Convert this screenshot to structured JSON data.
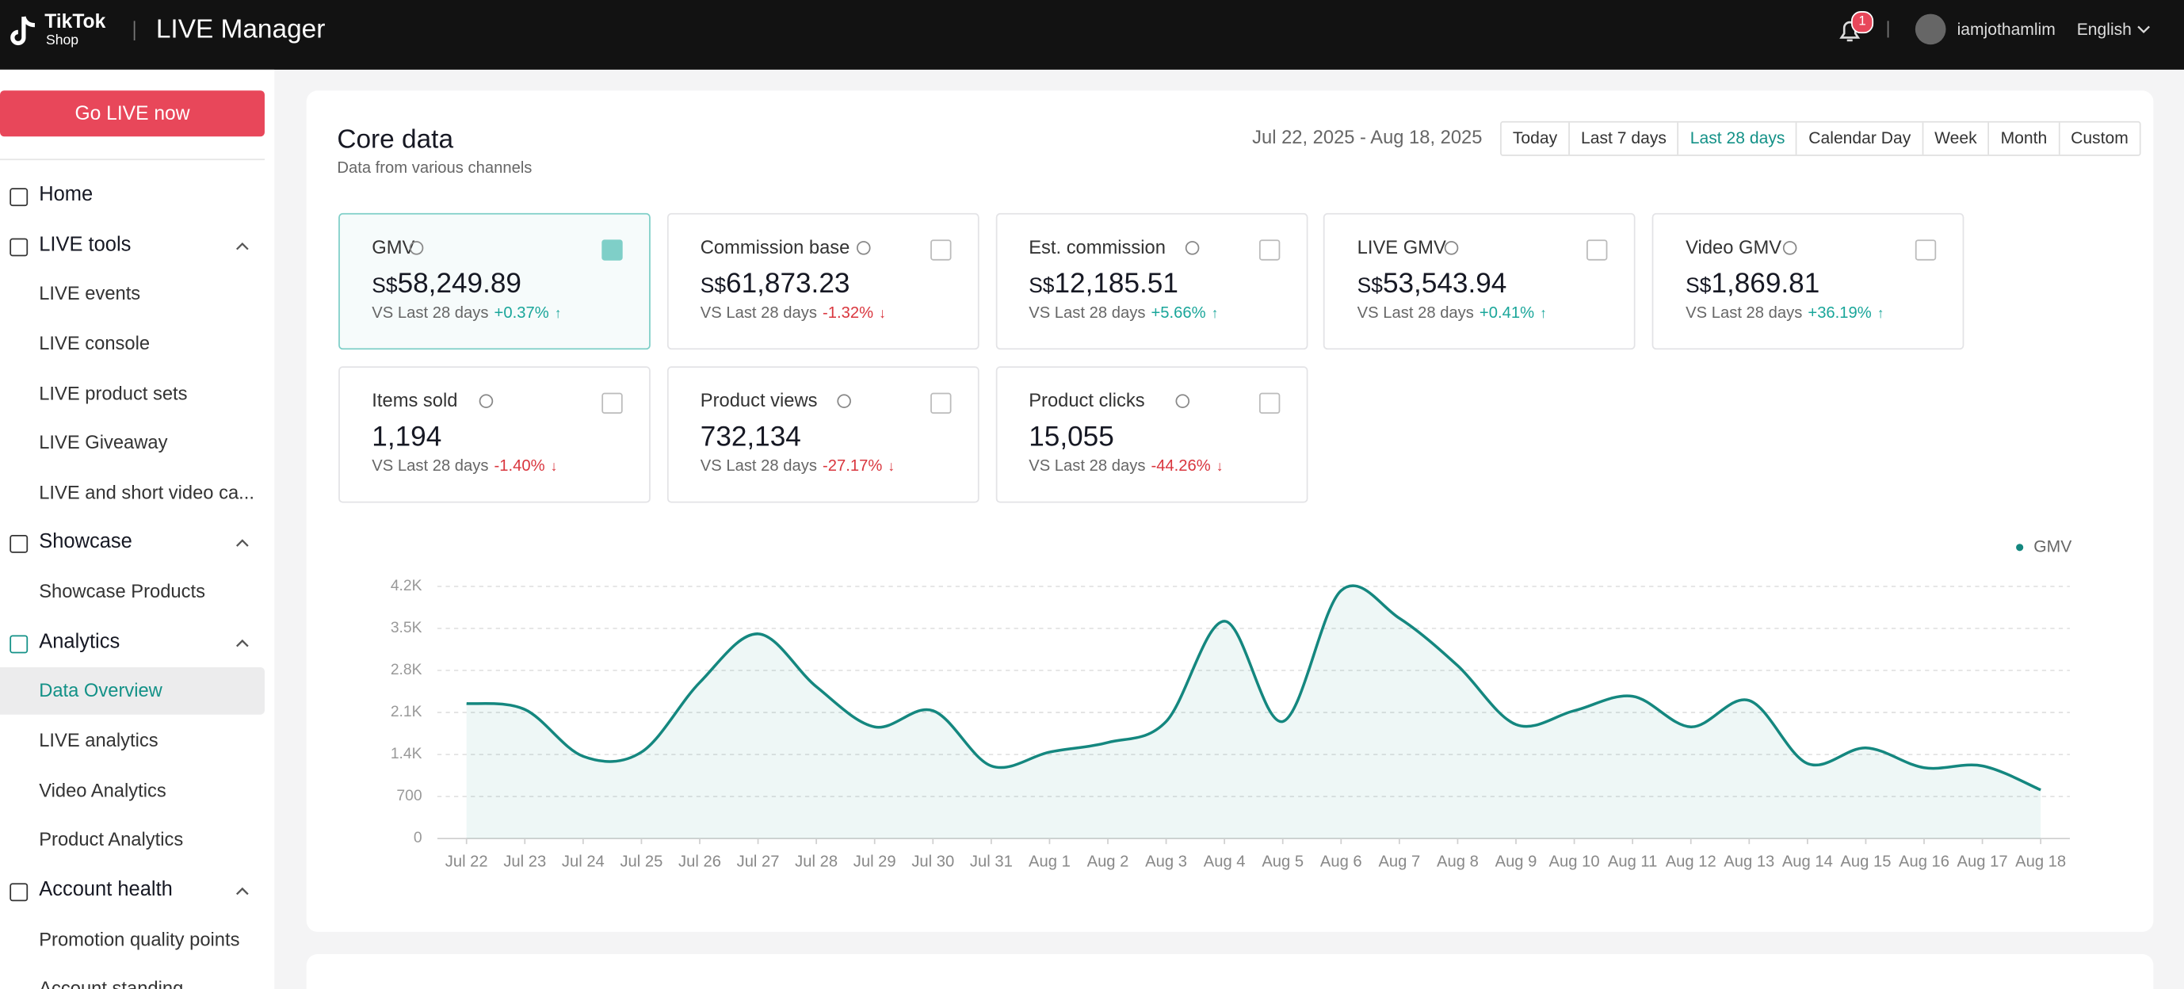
{
  "header": {
    "logo_line1": "TikTok",
    "logo_line2": "Shop",
    "title": "LIVE Manager",
    "notification_count": 1,
    "username": "iamjothamlim",
    "language": "English"
  },
  "sidebar": {
    "go_live": "Go LIVE now",
    "active": "Data Overview",
    "sections": [
      {
        "title": "Home",
        "items": []
      },
      {
        "title": "LIVE tools",
        "items": [
          "LIVE events",
          "LIVE console",
          "LIVE product sets",
          "LIVE Giveaway",
          "LIVE and short video ca..."
        ]
      },
      {
        "title": "Showcase",
        "items": [
          "Showcase Products"
        ]
      },
      {
        "title": "Analytics",
        "items": [
          "Data Overview",
          "LIVE analytics",
          "Video Analytics",
          "Product Analytics"
        ]
      },
      {
        "title": "Account health",
        "items": [
          "Promotion quality points",
          "Account standing"
        ]
      }
    ]
  },
  "core": {
    "title": "Core data",
    "subtitle": "Data from various channels",
    "date_range": "Jul 22, 2025 - Aug 18, 2025",
    "ranges": [
      "Today",
      "Last 7 days",
      "Last 28 days",
      "Calendar Day",
      "Week",
      "Month",
      "Custom"
    ],
    "active_range": "Last 28 days",
    "cards": [
      {
        "label": "GMV",
        "currency": "S$",
        "value": "58,249.89",
        "compare": "VS Last 28 days",
        "change": "+0.37%",
        "selected": true
      },
      {
        "label": "Commission base",
        "currency": "S$",
        "value": "61,873.23",
        "compare": "VS Last 28 days",
        "change": "-1.32%",
        "selected": false
      },
      {
        "label": "Est. commission",
        "currency": "S$",
        "value": "12,185.51",
        "compare": "VS Last 28 days",
        "change": "+5.66%",
        "selected": false
      },
      {
        "label": "LIVE GMV",
        "currency": "S$",
        "value": "53,543.94",
        "compare": "VS Last 28 days",
        "change": "+0.41%",
        "selected": false
      },
      {
        "label": "Video GMV",
        "currency": "S$",
        "value": "1,869.81",
        "compare": "VS Last 28 days",
        "change": "+36.19%",
        "selected": false
      },
      {
        "label": "Items sold",
        "currency": null,
        "value": "1,194",
        "compare": "VS Last 28 days",
        "change": "-1.40%",
        "selected": false
      },
      {
        "label": "Product views",
        "currency": null,
        "value": "732,134",
        "compare": "VS Last 28 days",
        "change": "-27.17%",
        "selected": false
      },
      {
        "label": "Product clicks",
        "currency": null,
        "value": "15,055",
        "compare": "VS Last 28 days",
        "change": "-44.26%",
        "selected": false
      }
    ]
  },
  "chart_data": {
    "type": "line",
    "legend": "top-right",
    "grid": true,
    "categories": [
      "Jul 22",
      "Jul 23",
      "Jul 24",
      "Jul 25",
      "Jul 26",
      "Jul 27",
      "Jul 28",
      "Jul 29",
      "Jul 30",
      "Jul 31",
      "Aug 1",
      "Aug 2",
      "Aug 3",
      "Aug 4",
      "Aug 5",
      "Aug 6",
      "Aug 7",
      "Aug 8",
      "Aug 9",
      "Aug 10",
      "Aug 11",
      "Aug 12",
      "Aug 13",
      "Aug 14",
      "Aug 15",
      "Aug 16",
      "Aug 17",
      "Aug 18"
    ],
    "series": [
      {
        "name": "GMV",
        "color": "#14877f",
        "values": [
          2250,
          2150,
          1370,
          1440,
          2600,
          3410,
          2530,
          1860,
          2130,
          1210,
          1440,
          1600,
          1950,
          3620,
          1950,
          4130,
          3670,
          2880,
          1900,
          2130,
          2370,
          1860,
          2300,
          1250,
          1510,
          1180,
          1210,
          810
        ]
      }
    ],
    "ylim": [
      0,
      4200
    ],
    "yticks": [
      0,
      700,
      {
        "value": 1400,
        "label": "1.4K"
      },
      {
        "value": 2100,
        "label": "2.1K"
      },
      {
        "value": 2800,
        "label": "2.8K"
      },
      {
        "value": 3500,
        "label": "3.5K"
      },
      {
        "value": 4200,
        "label": "4.2K"
      }
    ]
  }
}
